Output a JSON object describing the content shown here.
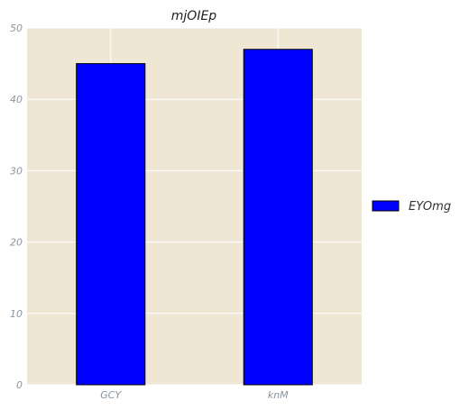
{
  "chart_data": {
    "type": "bar",
    "title": "mjOIEp",
    "xlabel": "",
    "ylabel": "",
    "categories": [
      "GCY",
      "knM"
    ],
    "series": [
      {
        "name": "EYOmg",
        "values": [
          45,
          47
        ],
        "color": "#0000ff"
      }
    ],
    "ylim": [
      0,
      50
    ],
    "yticks": [
      0,
      10,
      20,
      30,
      40,
      50
    ],
    "grid": true,
    "legend_position": "right",
    "colors": {
      "plot_background": "#efe7d4",
      "grid": "#ffffff",
      "bar_edge": "#000000",
      "tick_label": "#8a96a0"
    }
  }
}
